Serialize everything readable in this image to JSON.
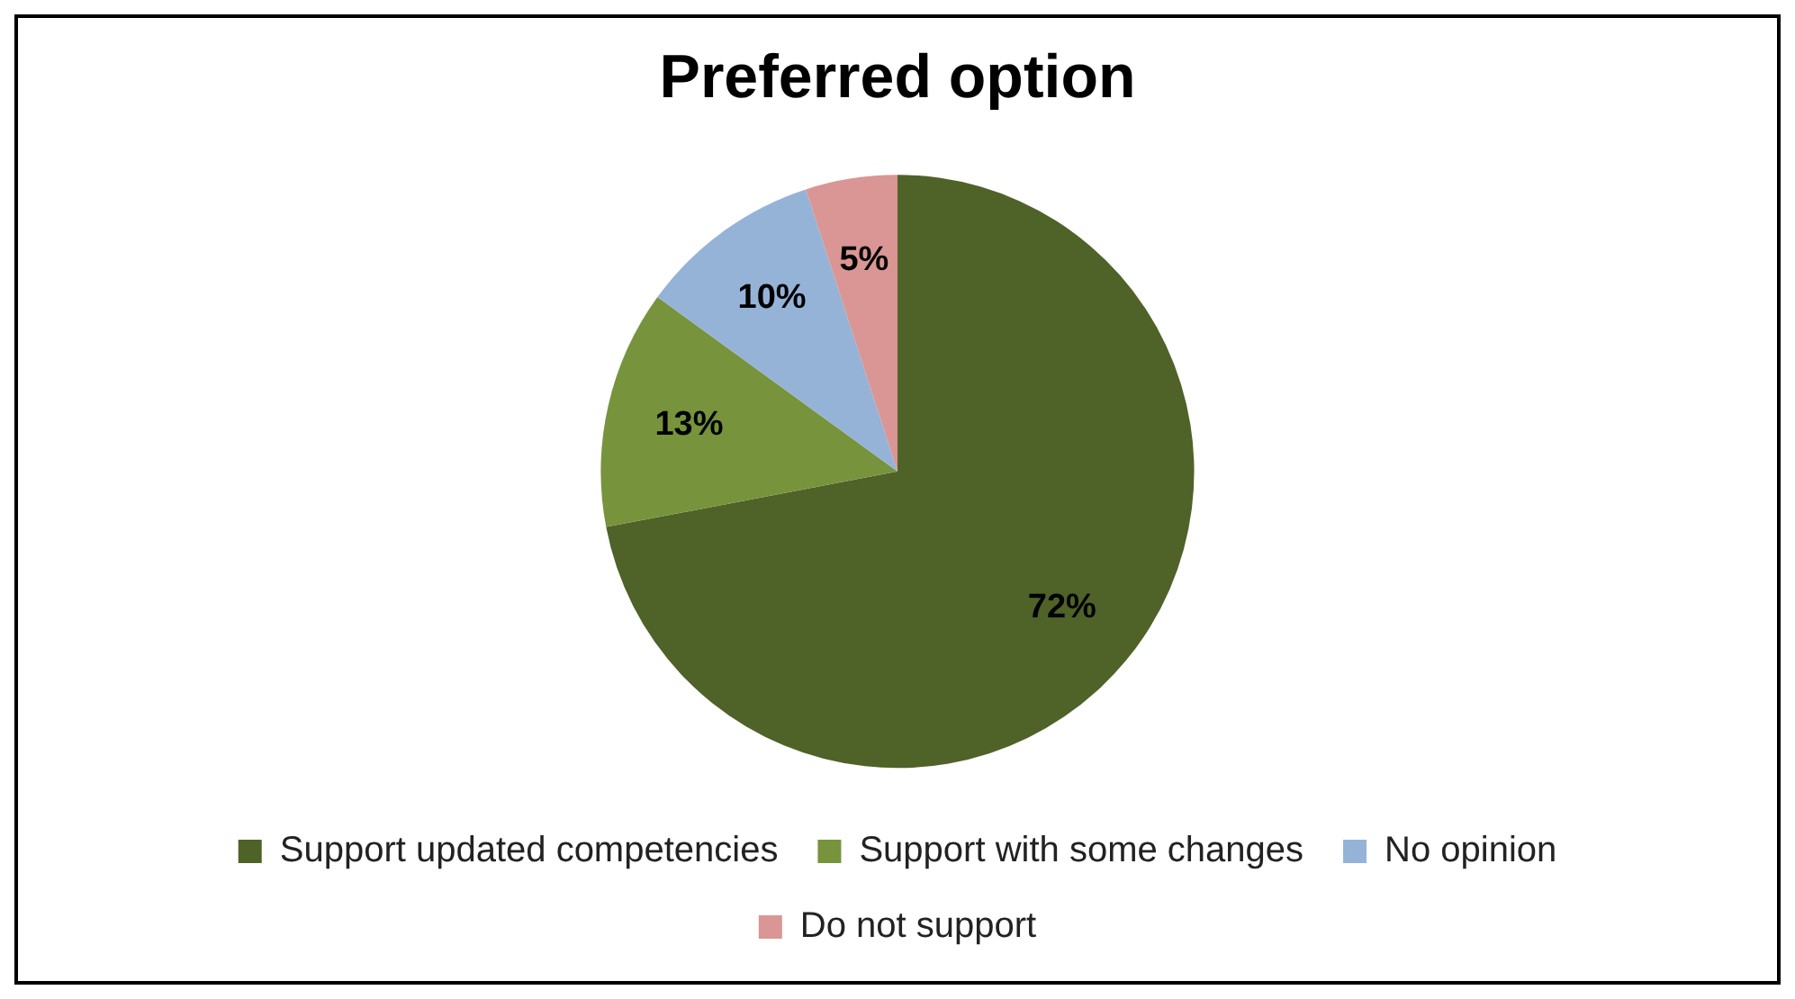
{
  "chart_data": {
    "type": "pie",
    "title": "Preferred option",
    "categories": [
      "Support updated competencies",
      "Support with some changes",
      "No opinion",
      "Do not support"
    ],
    "values": [
      72,
      13,
      10,
      5
    ],
    "colors": [
      "#4f6228",
      "#77933c",
      "#95b3d7",
      "#d99694"
    ],
    "value_labels": [
      "72%",
      "13%",
      "10%",
      "5%"
    ],
    "legend": "bottom"
  }
}
